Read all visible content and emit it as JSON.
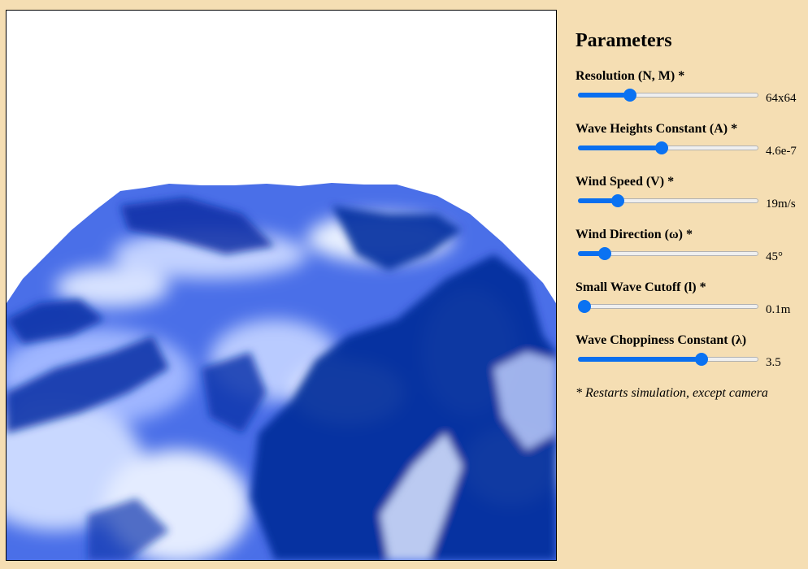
{
  "panel": {
    "title": "Parameters",
    "footnote": "* Restarts simulation, except camera"
  },
  "params": [
    {
      "label": "Resolution (N, M) *",
      "value": "64x64",
      "level": 0.27
    },
    {
      "label": "Wave Heights Constant (A) *",
      "value": "4.6e-7",
      "level": 0.46
    },
    {
      "label": "Wind Speed (V) *",
      "value": "19m/s",
      "level": 0.2
    },
    {
      "label": "Wind Direction (ω) *",
      "value": "45°",
      "level": 0.12
    },
    {
      "label": "Small Wave Cutoff (l) *",
      "value": "0.1m",
      "level": 0.0
    },
    {
      "label": "Wave Choppiness Constant (λ)",
      "value": "3.5",
      "level": 0.7
    }
  ],
  "colors": {
    "background": "#f5deb3",
    "slider_accent": "#0a72f2",
    "ocean_deep": "#002a9a",
    "ocean_mid": "#5078ee",
    "ocean_light": "#dde8ff"
  }
}
